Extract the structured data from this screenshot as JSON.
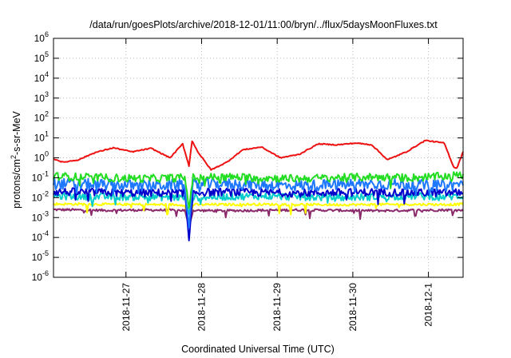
{
  "chart_data": {
    "type": "line",
    "title": "/data/run/goesPlots/archive/2018-12-01/11:00/bryn/../flux/5daysMoonFluxes.txt",
    "xlabel": "Coordinated Universal Time (UTC)",
    "ylabel": {
      "prefix": "protons/cm",
      "sup": "2",
      "suffix": "-s-sr-MeV"
    },
    "yscale": "log",
    "ylim": [
      1e-06,
      1000000.0
    ],
    "xlim": [
      "2018-11-26T01:00",
      "2018-12-01T11:00"
    ],
    "grid": true,
    "y_ticks": [
      {
        "value": 1e-06,
        "base": "10",
        "exp": "-6"
      },
      {
        "value": 1e-05,
        "base": "10",
        "exp": "-5"
      },
      {
        "value": 0.0001,
        "base": "10",
        "exp": "-4"
      },
      {
        "value": 0.001,
        "base": "10",
        "exp": "-3"
      },
      {
        "value": 0.01,
        "base": "10",
        "exp": "-2"
      },
      {
        "value": 0.1,
        "base": "10",
        "exp": "-1"
      },
      {
        "value": 1,
        "base": "10",
        "exp": "0"
      },
      {
        "value": 10.0,
        "base": "10",
        "exp": "1"
      },
      {
        "value": 100.0,
        "base": "10",
        "exp": "2"
      },
      {
        "value": 1000.0,
        "base": "10",
        "exp": "3"
      },
      {
        "value": 10000.0,
        "base": "10",
        "exp": "4"
      },
      {
        "value": 100000.0,
        "base": "10",
        "exp": "5"
      },
      {
        "value": 1000000.0,
        "base": "10",
        "exp": "6"
      }
    ],
    "x_ticks": [
      {
        "value": "2018-11-27",
        "label": "2018-11-27"
      },
      {
        "value": "2018-11-28",
        "label": "2018-11-28"
      },
      {
        "value": "2018-11-29",
        "label": "2018-11-29"
      },
      {
        "value": "2018-11-30",
        "label": "2018-11-30"
      },
      {
        "value": "2018-12-01",
        "label": "2018-12-1"
      }
    ],
    "series": [
      {
        "color": "#8b2a6b",
        "base": 0.0023,
        "noise": 0.06,
        "dip": 0.0003,
        "x": [
          "2018-11-26T01:00",
          "2018-11-26T18:00",
          "2018-11-27T06:00",
          "2018-11-27T18:00",
          "2018-11-28T06:00",
          "2018-11-28T18:00",
          "2018-11-29T06:00",
          "2018-11-29T18:00",
          "2018-11-30T06:00",
          "2018-11-30T18:00",
          "2018-12-01T06:00",
          "2018-12-01T11:00"
        ],
        "y": [
          0.0025,
          0.0023,
          0.0024,
          0.0023,
          0.0022,
          0.0023,
          0.0024,
          0.0023,
          0.0022,
          0.0023,
          0.0024,
          0.0023
        ]
      },
      {
        "color": "#ffff00",
        "base": 0.0045,
        "noise": 0.06,
        "dip": 0.0006,
        "x": [
          "2018-11-26T01:00",
          "2018-11-26T18:00",
          "2018-11-27T06:00",
          "2018-11-27T18:00",
          "2018-11-28T06:00",
          "2018-11-28T18:00",
          "2018-11-29T06:00",
          "2018-11-29T18:00",
          "2018-11-30T06:00",
          "2018-11-30T18:00",
          "2018-12-01T06:00",
          "2018-12-01T11:00"
        ],
        "y": [
          0.0048,
          0.0046,
          0.0045,
          0.0044,
          0.0045,
          0.0046,
          0.0045,
          0.0044,
          0.0045,
          0.0046,
          0.0045,
          0.0047
        ]
      },
      {
        "color": "#00cccc",
        "base": 0.011,
        "noise": 0.18,
        "dip": 0.0015,
        "x": [
          "2018-11-26T01:00",
          "2018-11-26T18:00",
          "2018-11-27T06:00",
          "2018-11-27T18:00",
          "2018-11-28T06:00",
          "2018-11-28T18:00",
          "2018-11-29T06:00",
          "2018-11-29T18:00",
          "2018-11-30T06:00",
          "2018-11-30T18:00",
          "2018-12-01T06:00",
          "2018-12-01T11:00"
        ],
        "y": [
          0.012,
          0.011,
          0.011,
          0.01,
          0.011,
          0.012,
          0.011,
          0.01,
          0.011,
          0.012,
          0.011,
          0.012
        ]
      },
      {
        "color": "#0000cc",
        "base": 0.018,
        "noise": 0.2,
        "dip": 7e-05,
        "x": [
          "2018-11-26T01:00",
          "2018-11-26T18:00",
          "2018-11-27T06:00",
          "2018-11-27T18:00",
          "2018-11-28T06:00",
          "2018-11-28T18:00",
          "2018-11-29T06:00",
          "2018-11-29T18:00",
          "2018-11-30T06:00",
          "2018-11-30T18:00",
          "2018-12-01T06:00",
          "2018-12-01T11:00"
        ],
        "y": [
          0.02,
          0.018,
          0.017,
          0.018,
          0.019,
          0.018,
          0.017,
          0.018,
          0.019,
          0.018,
          0.017,
          0.019
        ]
      },
      {
        "color": "#1e78ff",
        "base": 0.045,
        "noise": 0.28,
        "dip": 0.0003,
        "x": [
          "2018-11-26T01:00",
          "2018-11-26T18:00",
          "2018-11-27T06:00",
          "2018-11-27T18:00",
          "2018-11-28T06:00",
          "2018-11-28T18:00",
          "2018-11-29T06:00",
          "2018-11-29T18:00",
          "2018-11-30T06:00",
          "2018-11-30T18:00",
          "2018-12-01T06:00",
          "2018-12-01T11:00"
        ],
        "y": [
          0.05,
          0.045,
          0.04,
          0.045,
          0.05,
          0.045,
          0.04,
          0.045,
          0.05,
          0.045,
          0.04,
          0.05
        ]
      },
      {
        "color": "#22dd22",
        "base": 0.1,
        "noise": 0.2,
        "dip": 0.003,
        "x": [
          "2018-11-26T01:00",
          "2018-11-26T18:00",
          "2018-11-27T06:00",
          "2018-11-27T18:00",
          "2018-11-28T06:00",
          "2018-11-28T18:00",
          "2018-11-29T06:00",
          "2018-11-29T18:00",
          "2018-11-30T06:00",
          "2018-11-30T18:00",
          "2018-12-01T06:00",
          "2018-12-01T11:00"
        ],
        "y": [
          0.12,
          0.1,
          0.09,
          0.1,
          0.11,
          0.1,
          0.09,
          0.1,
          0.11,
          0.1,
          0.12,
          0.14
        ]
      },
      {
        "color": "#ee1111",
        "base": null,
        "noise": 0.05,
        "dip": null,
        "x": [
          "2018-11-26T01:00",
          "2018-11-26T04:00",
          "2018-11-26T09:00",
          "2018-11-26T14:00",
          "2018-11-26T20:00",
          "2018-11-27T02:00",
          "2018-11-27T08:00",
          "2018-11-27T14:00",
          "2018-11-27T18:00",
          "2018-11-27T20:00",
          "2018-11-27T21:00",
          "2018-11-27T23:00",
          "2018-11-28T03:00",
          "2018-11-28T08:00",
          "2018-11-28T13:00",
          "2018-11-28T19:00",
          "2018-11-29T01:00",
          "2018-11-29T07:00",
          "2018-11-29T13:00",
          "2018-11-29T19:00",
          "2018-11-30T01:00",
          "2018-11-30T06:00",
          "2018-11-30T11:00",
          "2018-11-30T17:00",
          "2018-11-30T23:00",
          "2018-12-01T05:00",
          "2018-12-01T08:00",
          "2018-12-01T09:00",
          "2018-12-01T11:00"
        ],
        "y": [
          0.9,
          0.6,
          0.8,
          1.8,
          3.2,
          2.0,
          3.0,
          1.0,
          5.0,
          0.4,
          7.0,
          1.8,
          0.25,
          0.6,
          2.5,
          3.5,
          1.0,
          1.5,
          5.0,
          4.5,
          5.5,
          4.5,
          0.8,
          2.0,
          7.5,
          5.5,
          0.35,
          0.3,
          2.0
        ]
      }
    ]
  }
}
